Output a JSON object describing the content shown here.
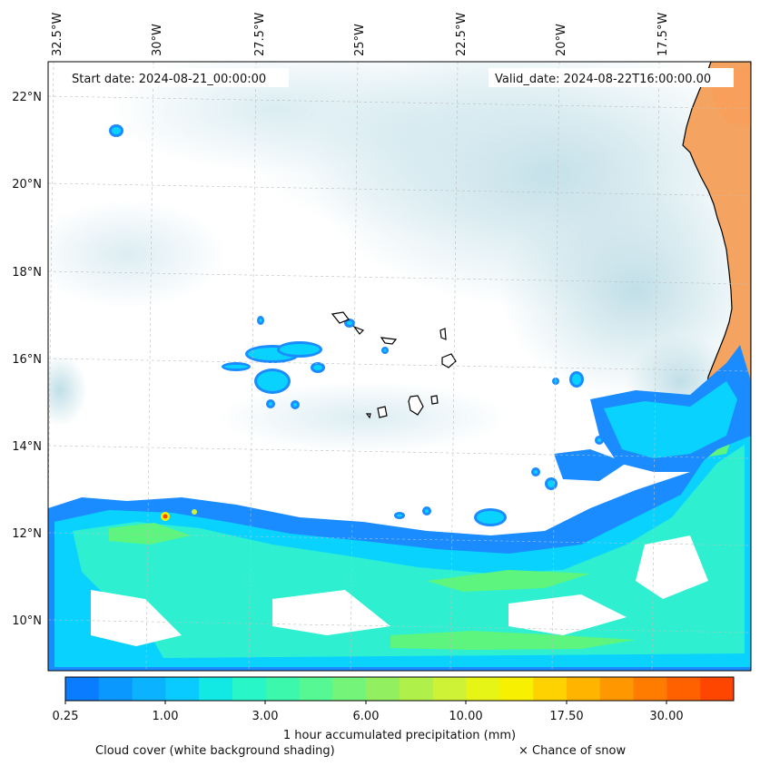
{
  "map": {
    "start_date_text": "Start date: 2024-08-21_00:00:00",
    "valid_date_text": "Valid_date: 2024-08-22T16:00:00.00",
    "longitude_labels": [
      "32.5°W",
      "30°W",
      "27.5°W",
      "25°W",
      "22.5°W",
      "20°W",
      "17.5°W"
    ],
    "latitude_labels": [
      "22°N",
      "20°N",
      "18°N",
      "16°N",
      "14°N",
      "12°N",
      "10°N"
    ],
    "extent": {
      "lon_min": -32.6,
      "lon_max": -15.2,
      "lat_min": 8.9,
      "lat_max": 22.8
    },
    "land_color": "#f4a460",
    "cloud_color": "#a9d4e0"
  },
  "colorbar": {
    "tick_labels": [
      "0.25",
      "1.00",
      "3.00",
      "6.00",
      "10.00",
      "17.50",
      "30.00"
    ],
    "label": "1 hour accumulated precipitation (mm)",
    "colors": [
      "#0a7cff",
      "#0a98ff",
      "#0ab2ff",
      "#0acbff",
      "#12e8e4",
      "#28f6c8",
      "#3cf8ac",
      "#55f892",
      "#74f478",
      "#92f060",
      "#b0f04a",
      "#cef236",
      "#e6f416",
      "#f7f000",
      "#fdd200",
      "#ffb400",
      "#ff9800",
      "#ff7c00",
      "#ff6000",
      "#ff4600"
    ]
  },
  "captions": {
    "cloud_cover": "Cloud cover (white background shading)",
    "snow": "× Chance of snow"
  }
}
